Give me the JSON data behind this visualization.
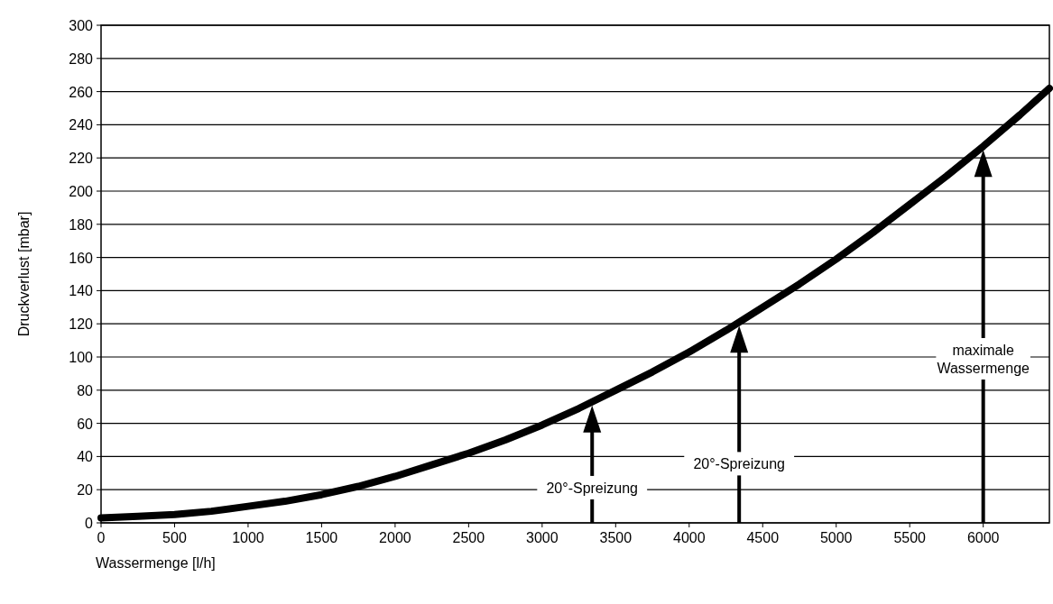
{
  "chart_data": {
    "type": "line",
    "xlabel": "Wassermenge [l/h]",
    "ylabel": "Druckverlust [mbar]",
    "x": [
      0,
      250,
      500,
      750,
      1000,
      1250,
      1500,
      1750,
      2000,
      2250,
      2500,
      2750,
      3000,
      3250,
      3500,
      3750,
      4000,
      4250,
      4500,
      4750,
      5000,
      5250,
      5500,
      5750,
      6000,
      6250,
      6450
    ],
    "series": [
      {
        "color": "#000000",
        "values": [
          3,
          4,
          5,
          7,
          10,
          13,
          17,
          22,
          28,
          35,
          42,
          50,
          59,
          69,
          80,
          91,
          103,
          116,
          130,
          144,
          159,
          175,
          192,
          209,
          227,
          246,
          262
        ]
      }
    ],
    "xlim": [
      0,
      6450
    ],
    "xticks": [
      0,
      500,
      1000,
      1500,
      2000,
      2500,
      3000,
      3500,
      4000,
      4500,
      5000,
      5500,
      6000
    ],
    "ylim": [
      0,
      300
    ],
    "yticks": [
      0,
      20,
      40,
      60,
      80,
      100,
      120,
      140,
      160,
      180,
      200,
      220,
      240,
      260,
      280,
      300
    ],
    "grid": "y",
    "marker": "none",
    "line_style": "solid",
    "ref_lines": [
      {
        "axis": "x",
        "value": 3340,
        "label": "20°-Spreizung"
      },
      {
        "axis": "x",
        "value": 4340,
        "label": "20°-Spreizung"
      },
      {
        "axis": "x",
        "value": 6000,
        "label": "maximale\nWassermenge"
      }
    ]
  }
}
